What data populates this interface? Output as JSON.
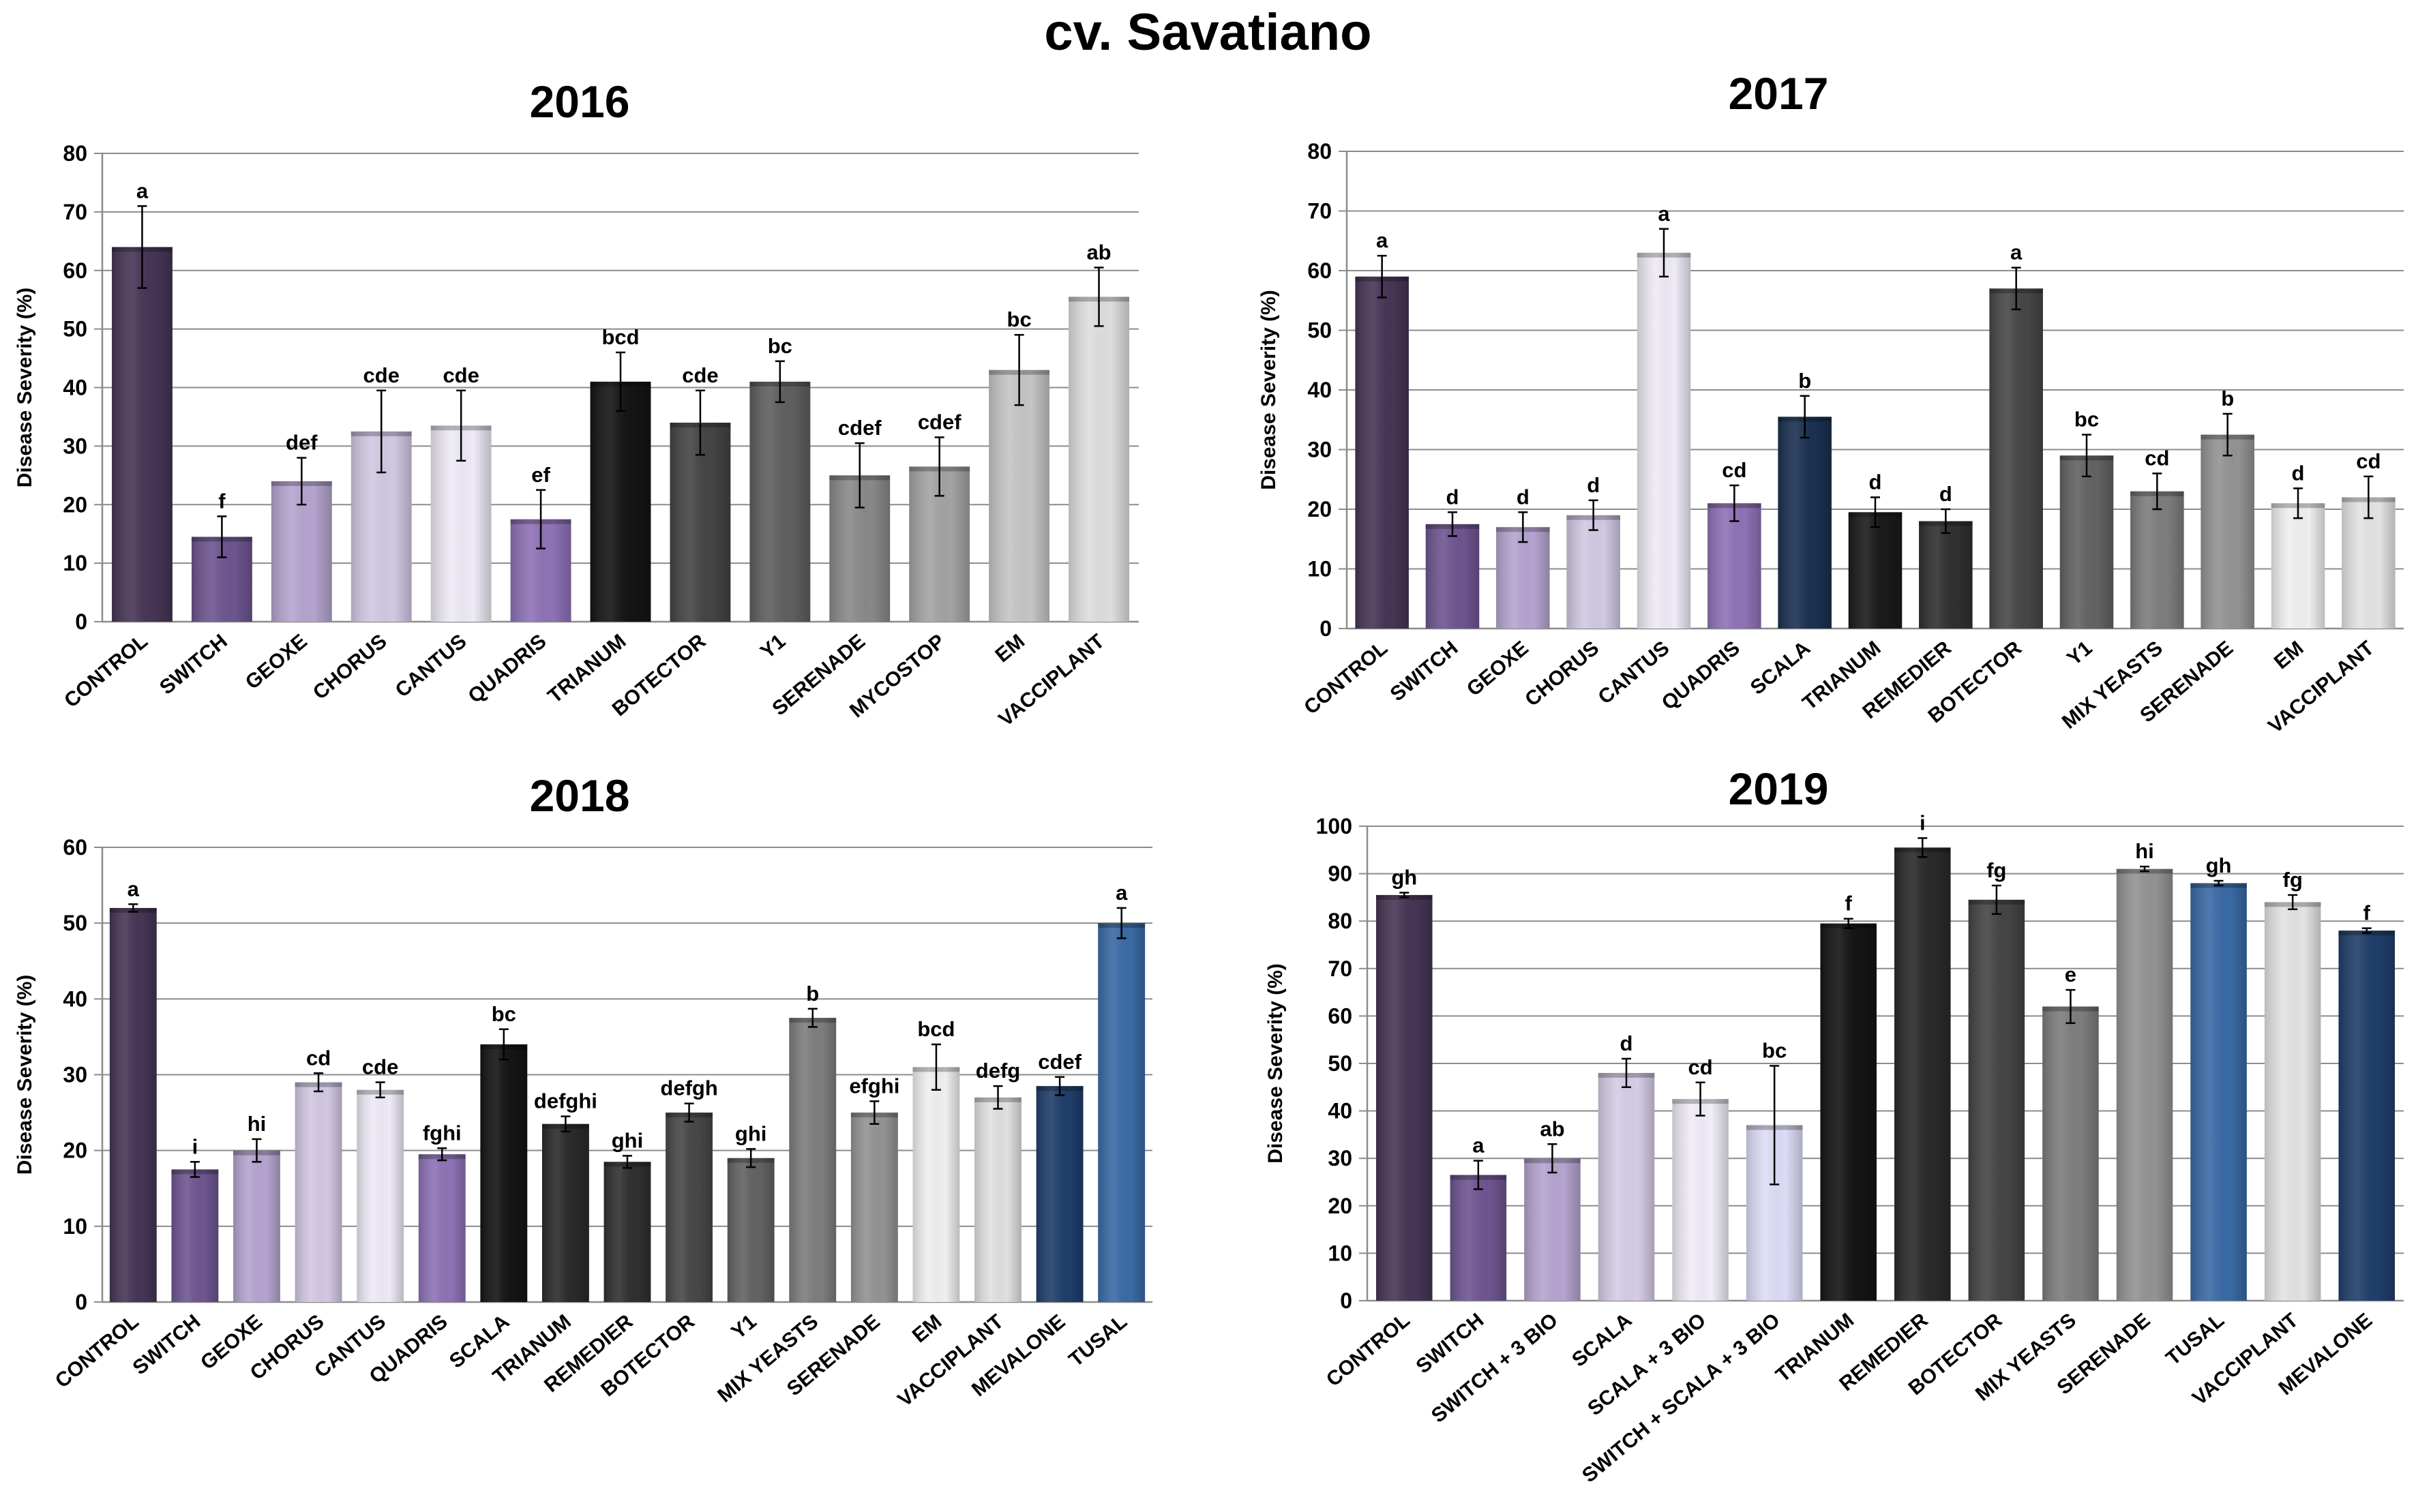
{
  "figure_title": "cv. Savatiano",
  "chart_data": [
    {
      "type": "bar",
      "title": "2016",
      "ylabel": "Disease Severity (%)",
      "xlabel": "",
      "ylim": [
        0,
        80
      ],
      "ytick_step": 10,
      "grid": true,
      "categories": [
        "CONTROL",
        "SWITCH",
        "GEOXE",
        "CHORUS",
        "CANTUS",
        "QUADRIS",
        "TRIANUM",
        "BOTECTOR",
        "Y1",
        "SERENADE",
        "MYCOSTOP",
        "EM",
        "VACCIPLANT"
      ],
      "values": [
        64,
        14.5,
        24,
        32.5,
        33.5,
        17.5,
        41,
        34,
        41,
        25,
        26.5,
        43,
        55.5
      ],
      "errors": [
        7,
        3.5,
        4,
        7,
        6,
        5,
        5,
        5.5,
        3.5,
        5.5,
        5,
        6,
        5
      ],
      "letters": [
        "a",
        "f",
        "def",
        "cde",
        "cde",
        "ef",
        "bcd",
        "cde",
        "bc",
        "cdef",
        "cdef",
        "bc",
        "ab"
      ],
      "colors": [
        "#463555",
        "#6e5590",
        "#b5a4cf",
        "#d2c8e3",
        "#eeeaf6",
        "#8e72b6",
        "#141414",
        "#444444",
        "#5f5f5f",
        "#898989",
        "#a3a3a3",
        "#c5c5c5",
        "#dedede"
      ]
    },
    {
      "type": "bar",
      "title": "2017",
      "ylabel": "Disease Severity (%)",
      "xlabel": "",
      "ylim": [
        0,
        80
      ],
      "ytick_step": 10,
      "grid": true,
      "categories": [
        "CONTROL",
        "SWITCH",
        "GEOXE",
        "CHORUS",
        "CANTUS",
        "QUADRIS",
        "SCALA",
        "TRIANUM",
        "REMEDIER",
        "BOTECTOR",
        "Y1",
        "MIX YEASTS",
        "SERENADE",
        "EM",
        "VACCIPLANT"
      ],
      "values": [
        59,
        17.5,
        17,
        19,
        63,
        21,
        35.5,
        19.5,
        18,
        57,
        29,
        23,
        32.5,
        21,
        22
      ],
      "errors": [
        3.5,
        2,
        2.5,
        2.5,
        4,
        3,
        3.5,
        2.5,
        2,
        3.5,
        3.5,
        3,
        3.5,
        2.5,
        3.5
      ],
      "letters": [
        "a",
        "d",
        "d",
        "d",
        "a",
        "cd",
        "b",
        "d",
        "d",
        "a",
        "bc",
        "cd",
        "b",
        "d",
        "cd"
      ],
      "colors": [
        "#463555",
        "#6e5590",
        "#b5a4cf",
        "#d2c8e3",
        "#eeeaf6",
        "#8e72b6",
        "#1a3050",
        "#1a1a1a",
        "#303030",
        "#474747",
        "#626262",
        "#7d7d7d",
        "#939393",
        "#efefef",
        "#e3e3e3"
      ]
    },
    {
      "type": "bar",
      "title": "2018",
      "ylabel": "Disease Severity (%)",
      "xlabel": "",
      "ylim": [
        0,
        60
      ],
      "ytick_step": 10,
      "grid": true,
      "categories": [
        "CONTROL",
        "SWITCH",
        "GEOXE",
        "CHORUS",
        "CANTUS",
        "QUADRIS",
        "SCALA",
        "TRIANUM",
        "REMEDIER",
        "BOTECTOR",
        "Y1",
        "MIX YEASTS",
        "SERENADE",
        "EM",
        "VACCIPLANT",
        "MEVALONE",
        "TUSAL"
      ],
      "values": [
        52,
        17.5,
        20,
        29,
        28,
        19.5,
        34,
        23.5,
        18.5,
        25,
        19,
        37.5,
        25,
        31,
        27,
        28.5,
        50
      ],
      "errors": [
        0.5,
        1,
        1.5,
        1.2,
        1,
        0.8,
        2,
        1,
        0.8,
        1.2,
        1.2,
        1.2,
        1.5,
        3,
        1.5,
        1.2,
        2
      ],
      "letters": [
        "a",
        "i",
        "hi",
        "cd",
        "cde",
        "fghi",
        "bc",
        "defghi",
        "ghi",
        "defgh",
        "ghi",
        "b",
        "efghi",
        "bcd",
        "defg",
        "cdef",
        "a"
      ],
      "colors": [
        "#463555",
        "#6e5590",
        "#b5a4cf",
        "#d2c8e3",
        "#eeeaf6",
        "#8e72b6",
        "#141414",
        "#2a2a2a",
        "#303030",
        "#474747",
        "#626262",
        "#7d7d7d",
        "#939393",
        "#efefef",
        "#e0e0e0",
        "#1f3e6b",
        "#3a6aa5"
      ]
    },
    {
      "type": "bar",
      "title": "2019",
      "ylabel": "Disease Severity (%)",
      "xlabel": "",
      "ylim": [
        0,
        100
      ],
      "ytick_step": 10,
      "grid": true,
      "categories": [
        "CONTROL",
        "SWITCH",
        "SWITCH + 3 BIO",
        "SCALA",
        "SCALA + 3 BIO",
        "SWITCH + SCALA + 3 BIO",
        "TRIANUM",
        "REMEDIER",
        "BOTECTOR",
        "MIX YEASTS",
        "SERENADE",
        "TUSAL",
        "VACCIPLANT",
        "MEVALONE"
      ],
      "values": [
        85.5,
        26.5,
        30,
        48,
        42.5,
        37,
        79.5,
        95.5,
        84.5,
        62,
        91,
        88,
        84,
        78
      ],
      "errors": [
        0.5,
        3,
        3,
        3,
        3.5,
        12.5,
        1,
        2,
        3,
        3.5,
        0.5,
        0.5,
        1.5,
        0.5
      ],
      "letters": [
        "gh",
        "a",
        "ab",
        "d",
        "cd",
        "bc",
        "f",
        "i",
        "fg",
        "e",
        "hi",
        "gh",
        "fg",
        "f"
      ],
      "colors": [
        "#463555",
        "#6e5590",
        "#b5a4cf",
        "#d6cce6",
        "#f0ecf8",
        "#dcdcf6",
        "#141414",
        "#2a2a2a",
        "#444444",
        "#7d7d7d",
        "#939393",
        "#3a6aa5",
        "#e3e3e3",
        "#1f3e6b"
      ]
    }
  ]
}
